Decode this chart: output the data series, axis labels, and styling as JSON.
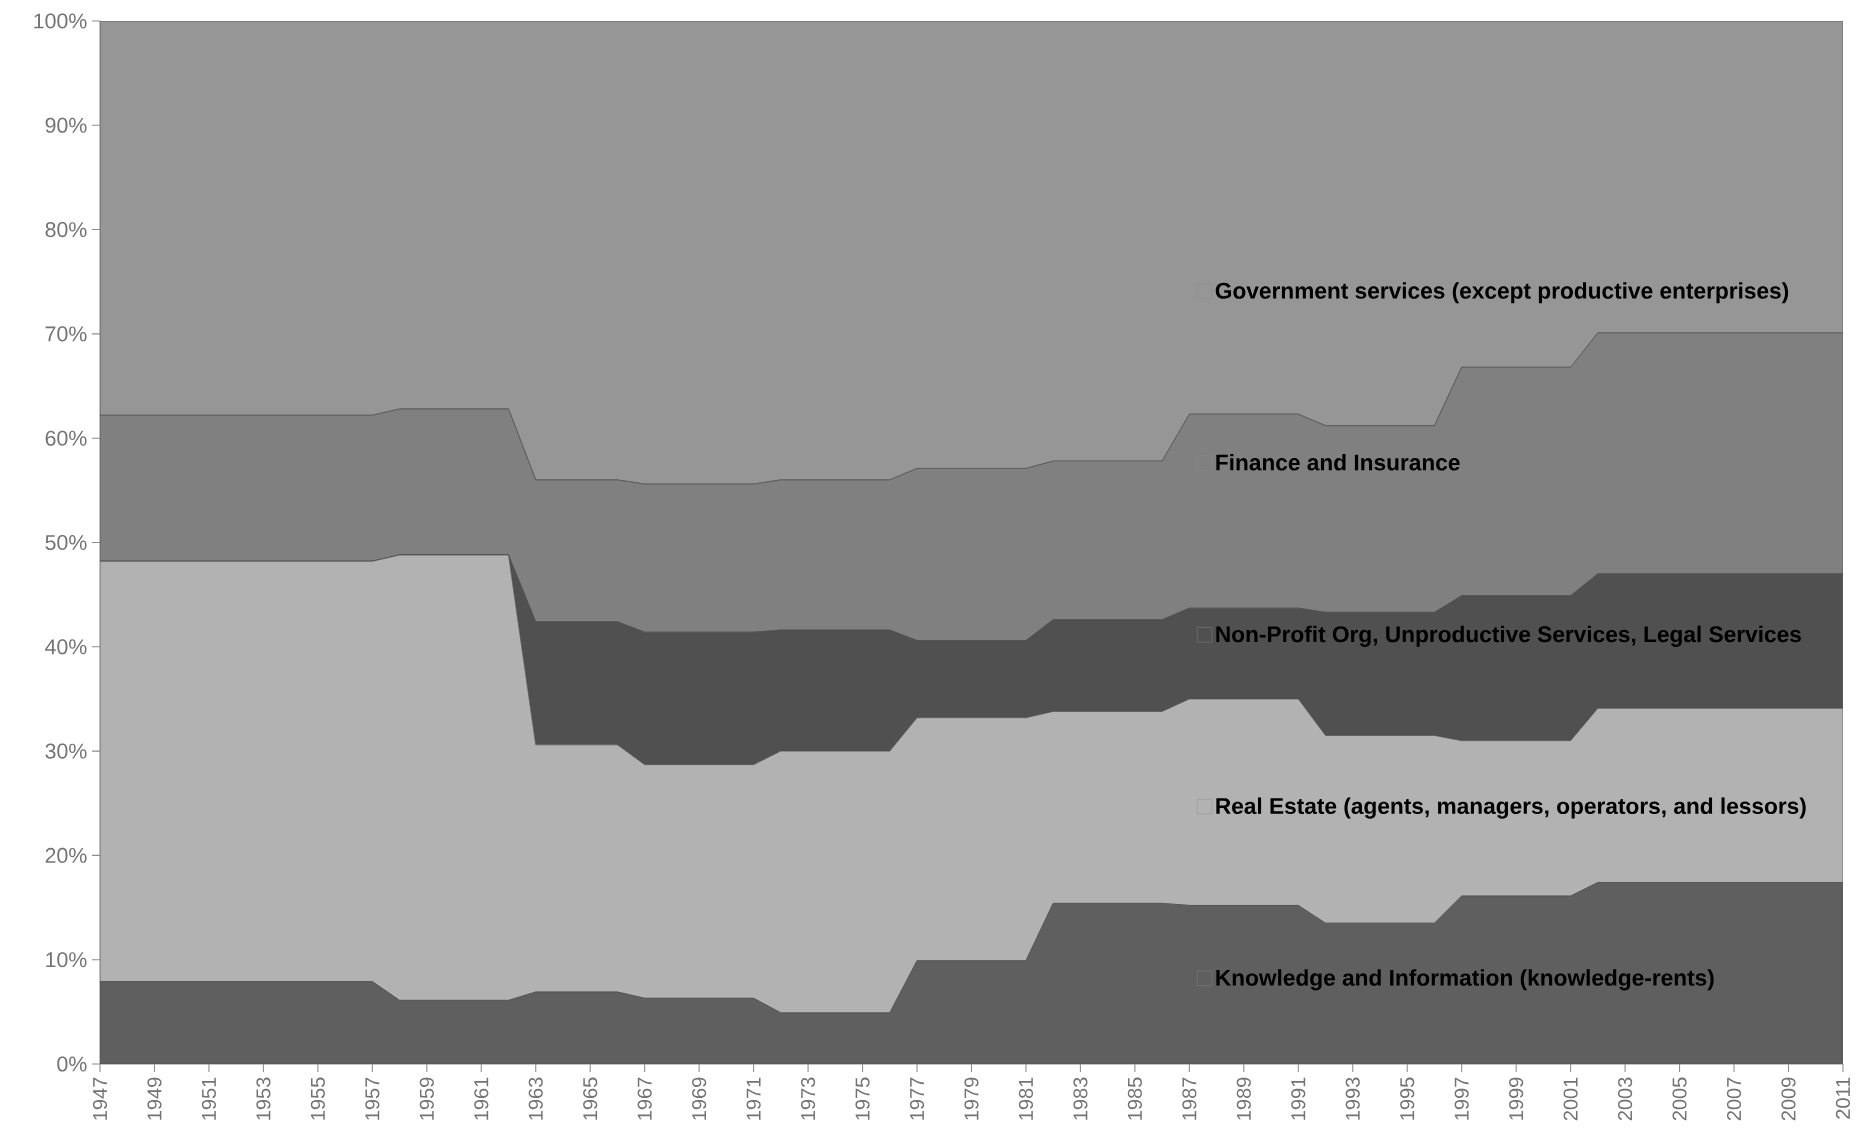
{
  "chart_data": {
    "type": "area",
    "stacked": true,
    "legend": "right",
    "x": [
      1947,
      1948,
      1949,
      1950,
      1951,
      1952,
      1953,
      1954,
      1955,
      1956,
      1957,
      1958,
      1959,
      1960,
      1961,
      1962,
      1963,
      1964,
      1965,
      1966,
      1967,
      1968,
      1969,
      1970,
      1971,
      1972,
      1973,
      1974,
      1975,
      1976,
      1977,
      1978,
      1979,
      1980,
      1981,
      1982,
      1983,
      1984,
      1985,
      1986,
      1987,
      1988,
      1989,
      1990,
      1991,
      1992,
      1993,
      1994,
      1995,
      1996,
      1997,
      1998,
      1999,
      2000,
      2001,
      2002,
      2003,
      2004,
      2005,
      2006,
      2007,
      2008,
      2009,
      2010,
      2011
    ],
    "xlim": [
      1947,
      2011
    ],
    "xticks": [
      1947,
      1949,
      1951,
      1953,
      1955,
      1957,
      1959,
      1961,
      1963,
      1965,
      1967,
      1969,
      1971,
      1973,
      1975,
      1977,
      1979,
      1981,
      1983,
      1985,
      1987,
      1989,
      1991,
      1993,
      1995,
      1997,
      1999,
      2001,
      2003,
      2005,
      2007,
      2009,
      2011
    ],
    "ylim": [
      0,
      100
    ],
    "yticks": [
      {
        "value": 0,
        "label": "0%"
      },
      {
        "value": 10,
        "label": "10%"
      },
      {
        "value": 20,
        "label": "20%"
      },
      {
        "value": 30,
        "label": "30%"
      },
      {
        "value": 40,
        "label": "40%"
      },
      {
        "value": 50,
        "label": "50%"
      },
      {
        "value": 60,
        "label": "60%"
      },
      {
        "value": 70,
        "label": "70%"
      },
      {
        "value": 80,
        "label": "80%"
      },
      {
        "value": 90,
        "label": "90%"
      },
      {
        "value": 100,
        "label": "100%"
      }
    ],
    "series": [
      {
        "name": "Knowledge and Information (knowledge-rents)",
        "color": "#5f5f5f",
        "values": [
          7.9,
          7.9,
          7.9,
          7.9,
          7.9,
          7.9,
          7.9,
          7.9,
          7.9,
          7.9,
          7.9,
          6.1,
          6.1,
          6.1,
          6.1,
          6.1,
          6.9,
          6.9,
          6.9,
          6.9,
          6.3,
          6.3,
          6.3,
          6.3,
          6.3,
          4.9,
          4.9,
          4.9,
          4.9,
          4.9,
          9.9,
          9.9,
          9.9,
          9.9,
          9.9,
          15.4,
          15.4,
          15.4,
          15.4,
          15.4,
          15.2,
          15.2,
          15.2,
          15.2,
          15.2,
          13.5,
          13.5,
          13.5,
          13.5,
          13.5,
          16.1,
          16.1,
          16.1,
          16.1,
          16.1,
          17.4,
          17.4,
          17.4,
          17.4,
          17.4,
          17.4,
          17.4,
          17.4,
          17.4,
          17.4
        ]
      },
      {
        "name": "Real Estate (agents, managers, operators, and lessors)",
        "color": "#b2b2b2",
        "values": [
          40.3,
          40.3,
          40.3,
          40.3,
          40.3,
          40.3,
          40.3,
          40.3,
          40.3,
          40.3,
          40.3,
          42.7,
          42.7,
          42.7,
          42.7,
          42.7,
          23.7,
          23.7,
          23.7,
          23.7,
          22.4,
          22.4,
          22.4,
          22.4,
          22.4,
          25.1,
          25.1,
          25.1,
          25.1,
          25.1,
          23.3,
          23.3,
          23.3,
          23.3,
          23.3,
          18.4,
          18.4,
          18.4,
          18.4,
          18.4,
          19.8,
          19.8,
          19.8,
          19.8,
          19.8,
          18.0,
          18.0,
          18.0,
          18.0,
          18.0,
          14.9,
          14.9,
          14.9,
          14.9,
          14.9,
          16.7,
          16.7,
          16.7,
          16.7,
          16.7,
          16.7,
          16.7,
          16.7,
          16.7,
          16.7
        ]
      },
      {
        "name": "Non-Profit Org, Unproductive Services, Legal Services",
        "color": "#505050",
        "values": [
          0,
          0,
          0,
          0,
          0,
          0,
          0,
          0,
          0,
          0,
          0,
          0,
          0,
          0,
          0,
          0,
          11.8,
          11.8,
          11.8,
          11.8,
          12.7,
          12.7,
          12.7,
          12.7,
          12.7,
          11.6,
          11.6,
          11.6,
          11.6,
          11.6,
          7.4,
          7.4,
          7.4,
          7.4,
          7.4,
          8.8,
          8.8,
          8.8,
          8.8,
          8.8,
          8.7,
          8.7,
          8.7,
          8.7,
          8.7,
          11.8,
          11.8,
          11.8,
          11.8,
          11.8,
          13.9,
          13.9,
          13.9,
          13.9,
          13.9,
          12.9,
          12.9,
          12.9,
          12.9,
          12.9,
          12.9,
          12.9,
          12.9,
          12.9,
          12.9
        ]
      },
      {
        "name": "Finance and Insurance",
        "color": "#808080",
        "values": [
          14.0,
          14.0,
          14.0,
          14.0,
          14.0,
          14.0,
          14.0,
          14.0,
          14.0,
          14.0,
          14.0,
          14.0,
          14.0,
          14.0,
          14.0,
          14.0,
          13.6,
          13.6,
          13.6,
          13.6,
          14.2,
          14.2,
          14.2,
          14.2,
          14.2,
          14.4,
          14.4,
          14.4,
          14.4,
          14.4,
          16.5,
          16.5,
          16.5,
          16.5,
          16.5,
          15.2,
          15.2,
          15.2,
          15.2,
          15.2,
          18.6,
          18.6,
          18.6,
          18.6,
          18.6,
          17.9,
          17.9,
          17.9,
          17.9,
          17.9,
          21.9,
          21.9,
          21.9,
          21.9,
          21.9,
          23.1,
          23.1,
          23.1,
          23.1,
          23.1,
          23.1,
          23.1,
          23.1,
          23.1,
          23.1
        ]
      },
      {
        "name": "Government services (except productive enterprises)",
        "color": "#969696",
        "values": [
          37.8,
          37.8,
          37.8,
          37.8,
          37.8,
          37.8,
          37.8,
          37.8,
          37.8,
          37.8,
          37.8,
          37.2,
          37.2,
          37.2,
          37.2,
          37.2,
          44.0,
          44.0,
          44.0,
          44.0,
          44.4,
          44.4,
          44.4,
          44.4,
          44.4,
          44.0,
          44.0,
          44.0,
          44.0,
          44.0,
          42.9,
          42.9,
          42.9,
          42.9,
          42.9,
          42.2,
          42.2,
          42.2,
          42.2,
          42.2,
          37.7,
          37.7,
          37.7,
          37.7,
          37.7,
          38.8,
          38.8,
          38.8,
          38.8,
          38.8,
          33.2,
          33.2,
          33.2,
          33.2,
          33.2,
          29.9,
          29.9,
          29.9,
          29.9,
          29.9,
          29.9,
          29.9,
          29.9,
          29.9,
          29.9
        ]
      }
    ]
  }
}
